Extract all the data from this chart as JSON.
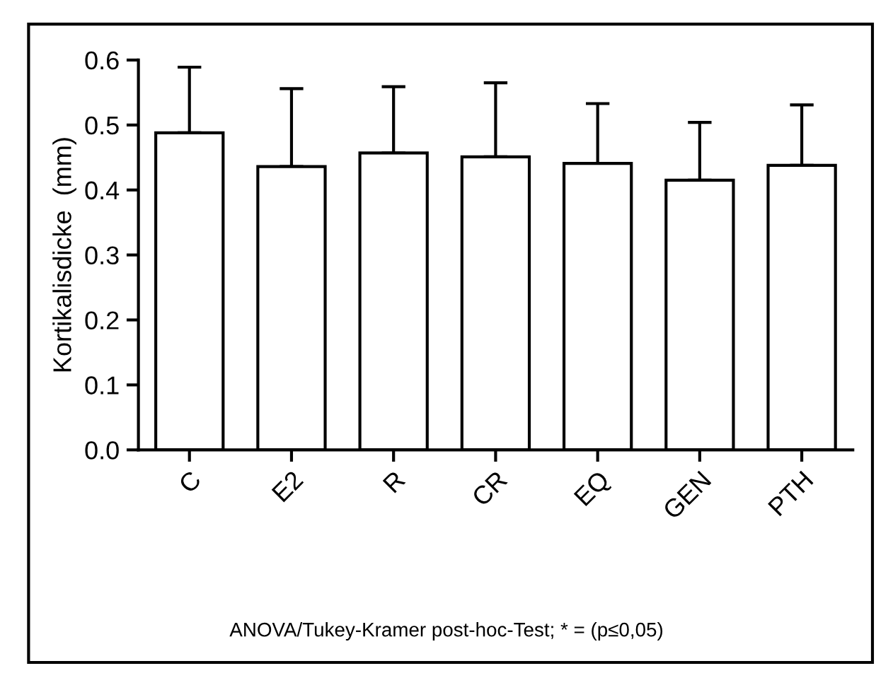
{
  "chart_data": {
    "type": "bar",
    "ylabel": "Kortikalisdicke  (mm)",
    "categories": [
      "C",
      "E2",
      "R",
      "CR",
      "EQ",
      "GEN",
      "PTH"
    ],
    "values": [
      0.488,
      0.436,
      0.457,
      0.451,
      0.441,
      0.415,
      0.438
    ],
    "errors": [
      [
        0.488,
        0.589
      ],
      [
        0.436,
        0.556
      ],
      [
        0.457,
        0.559
      ],
      [
        0.451,
        0.565
      ],
      [
        0.441,
        0.533
      ],
      [
        0.415,
        0.504
      ],
      [
        0.438,
        0.531
      ]
    ],
    "color": "#ffffff",
    "ylim": [
      0,
      0.6
    ],
    "yticks": [
      {
        "value": 0,
        "label": "0.0"
      },
      0.1,
      0.2,
      0.3,
      0.4,
      0.5,
      0.6
    ],
    "grid": false,
    "annotations": [
      "ANOVA/Tukey-Kramer post-hoc-Test; * = (p≤0,05)"
    ]
  }
}
